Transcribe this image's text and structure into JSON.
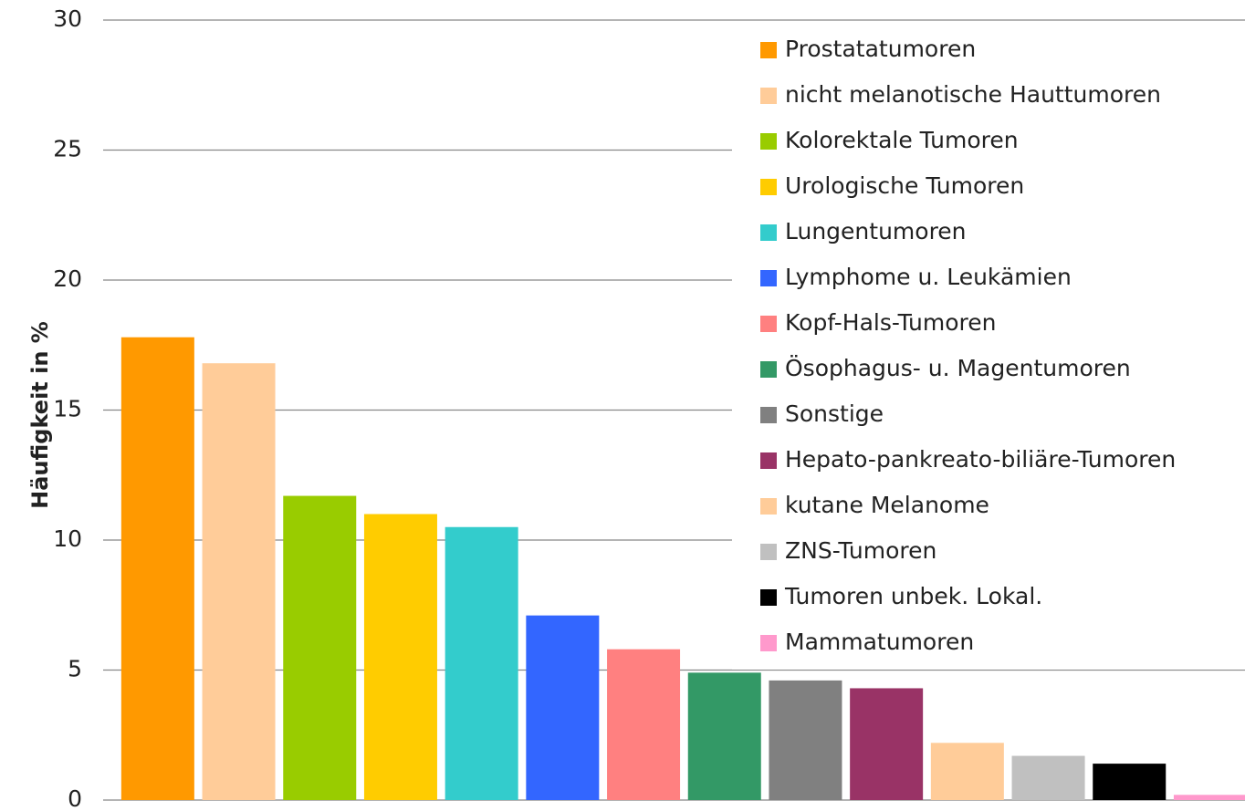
{
  "chart_data": {
    "type": "bar",
    "y_label": "Häufigkeit in %",
    "ylim": [
      0,
      30
    ],
    "yticks": [
      0,
      5,
      10,
      15,
      20,
      25,
      30
    ],
    "grid": true,
    "legend": "upper right",
    "series": [
      {
        "name": "Prostatatumoren",
        "color": "#FF9900",
        "values": [
          17.8
        ]
      },
      {
        "name": "nicht melanotische Hauttumoren",
        "color": "#FFCC99",
        "values": [
          16.8
        ]
      },
      {
        "name": "Kolorektale Tumoren",
        "color": "#99CC00",
        "values": [
          11.7
        ]
      },
      {
        "name": "Urologische Tumoren",
        "color": "#FFCC00",
        "values": [
          11.0
        ]
      },
      {
        "name": "Lungentumoren",
        "color": "#33CCCC",
        "values": [
          10.5
        ]
      },
      {
        "name": "Lymphome u. Leukämien",
        "color": "#3366FF",
        "values": [
          7.1
        ]
      },
      {
        "name": "Kopf-Hals-Tumoren",
        "color": "#FF8080",
        "values": [
          5.8
        ]
      },
      {
        "name": "Ösophagus- u. Magentumoren",
        "color": "#339966",
        "values": [
          4.9
        ]
      },
      {
        "name": "Sonstige",
        "color": "#808080",
        "values": [
          4.6
        ]
      },
      {
        "name": "Hepato-pankreato-biliäre-Tumoren",
        "color": "#993366",
        "values": [
          4.3
        ]
      },
      {
        "name": "kutane Melanome",
        "color": "#FFCC99",
        "values": [
          2.2
        ]
      },
      {
        "name": "ZNS-Tumoren",
        "color": "#C0C0C0",
        "values": [
          1.7
        ]
      },
      {
        "name": "Tumoren unbek. Lokal.",
        "color": "#000000",
        "values": [
          1.4
        ]
      },
      {
        "name": "Mammatumoren",
        "color": "#FF99CC",
        "values": [
          0.2
        ]
      }
    ]
  }
}
